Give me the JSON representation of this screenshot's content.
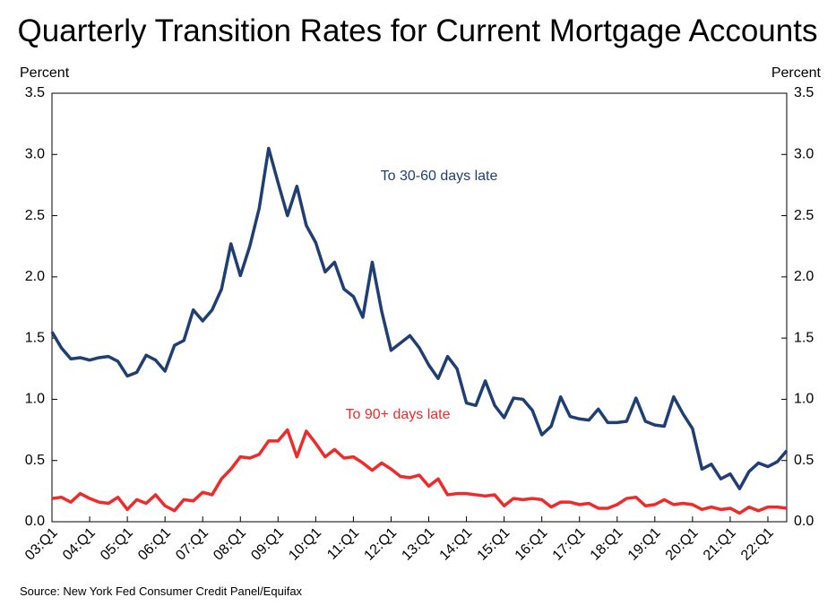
{
  "chart_data": {
    "type": "line",
    "title": "Quarterly Transition Rates for Current Mortgage Accounts",
    "y_label": "Percent",
    "y2_label": "Percent",
    "source": "Source: New York Fed Consumer Credit Panel/Equifax",
    "categories": [
      "03:Q1",
      null,
      null,
      null,
      "04:Q1",
      null,
      null,
      null,
      "05:Q1",
      null,
      null,
      null,
      "06:Q1",
      null,
      null,
      null,
      "07:Q1",
      null,
      null,
      null,
      "08:Q1",
      null,
      null,
      null,
      "09:Q1",
      null,
      null,
      null,
      "10:Q1",
      null,
      null,
      null,
      "11:Q1",
      null,
      null,
      null,
      "12:Q1",
      null,
      null,
      null,
      "13:Q1",
      null,
      null,
      null,
      "14:Q1",
      null,
      null,
      null,
      "15:Q1",
      null,
      null,
      null,
      "16:Q1",
      null,
      null,
      null,
      "17:Q1",
      null,
      null,
      null,
      "18:Q1",
      null,
      null,
      null,
      "19:Q1",
      null,
      null,
      null,
      "20:Q1",
      null,
      null,
      null,
      "21:Q1",
      null,
      null,
      null,
      "22:Q1",
      null,
      null
    ],
    "series": [
      {
        "name": "To 30-60 days late",
        "color": "#1f3f73",
        "values": [
          1.55,
          1.42,
          1.33,
          1.34,
          1.32,
          1.34,
          1.35,
          1.31,
          1.19,
          1.22,
          1.36,
          1.32,
          1.23,
          1.44,
          1.48,
          1.73,
          1.64,
          1.73,
          1.9,
          2.27,
          2.01,
          2.25,
          2.56,
          3.05,
          2.77,
          2.5,
          2.74,
          2.42,
          2.28,
          2.04,
          2.12,
          1.9,
          1.84,
          1.67,
          2.12,
          1.72,
          1.4,
          1.46,
          1.52,
          1.42,
          1.28,
          1.17,
          1.35,
          1.25,
          0.97,
          0.95,
          1.15,
          0.95,
          0.85,
          1.01,
          1.0,
          0.91,
          0.71,
          0.78,
          1.02,
          0.86,
          0.84,
          0.83,
          0.92,
          0.81,
          0.81,
          0.82,
          1.01,
          0.82,
          0.79,
          0.78,
          1.02,
          0.88,
          0.76,
          0.43,
          0.47,
          0.35,
          0.39,
          0.27,
          0.41,
          0.48,
          0.45,
          0.49,
          0.58
        ]
      },
      {
        "name": "To 90+ days late",
        "color": "#ee2a2a",
        "values": [
          0.19,
          0.2,
          0.16,
          0.23,
          0.19,
          0.16,
          0.15,
          0.2,
          0.1,
          0.18,
          0.15,
          0.22,
          0.13,
          0.09,
          0.18,
          0.17,
          0.24,
          0.22,
          0.35,
          0.43,
          0.53,
          0.52,
          0.55,
          0.66,
          0.66,
          0.75,
          0.53,
          0.74,
          0.64,
          0.53,
          0.59,
          0.52,
          0.53,
          0.48,
          0.42,
          0.48,
          0.43,
          0.37,
          0.36,
          0.38,
          0.29,
          0.35,
          0.22,
          0.23,
          0.23,
          0.22,
          0.21,
          0.22,
          0.13,
          0.19,
          0.18,
          0.19,
          0.18,
          0.12,
          0.16,
          0.16,
          0.14,
          0.15,
          0.11,
          0.11,
          0.14,
          0.19,
          0.2,
          0.13,
          0.14,
          0.18,
          0.14,
          0.15,
          0.14,
          0.1,
          0.12,
          0.1,
          0.11,
          0.07,
          0.12,
          0.09,
          0.12,
          0.12,
          0.11
        ]
      }
    ],
    "ylim": [
      0,
      3.5
    ],
    "yticks": [
      {
        "value": 0,
        "label": "0.0"
      },
      0.5,
      {
        "value": 1,
        "label": "1.0"
      },
      1.5,
      {
        "value": 2,
        "label": "2.0"
      },
      2.5,
      {
        "value": 3,
        "label": "3.0"
      },
      3.5
    ],
    "y2lim": [
      0,
      3.5
    ],
    "y2ticks": [
      {
        "value": 0,
        "label": "0.0"
      },
      0.5,
      {
        "value": 1,
        "label": "1.0"
      },
      1.5,
      {
        "value": 2,
        "label": "2.0"
      },
      2.5,
      {
        "value": 3,
        "label": "3.0"
      },
      3.5
    ],
    "grid": false
  }
}
